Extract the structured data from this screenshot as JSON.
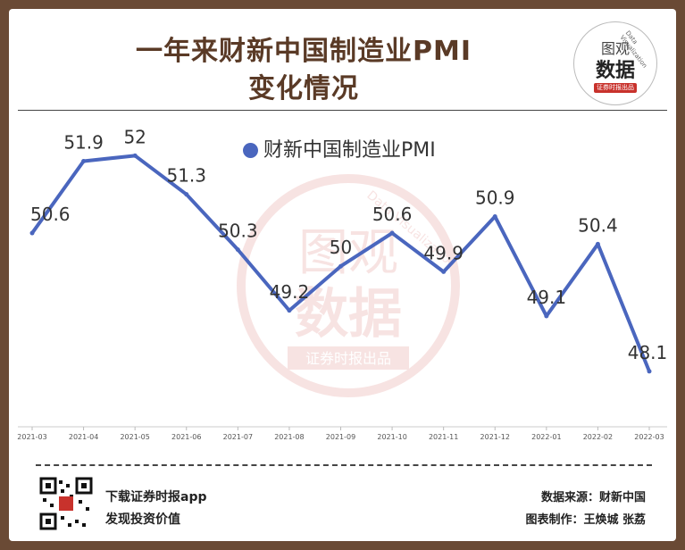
{
  "header": {
    "title_line1": "一年来财新中国制造业PMI",
    "title_line2": "变化情况"
  },
  "badge": {
    "line1": "图观",
    "line2": "数据",
    "tagline": "证券时报出品",
    "arc_text": "Data Visualization"
  },
  "watermark": {
    "line1": "图观",
    "line2": "数据",
    "tagline": "证券时报出品",
    "arc_text": "Data Visualization"
  },
  "chart_data": {
    "type": "line",
    "title": "一年来财新中国制造业PMI变化情况",
    "categories": [
      "2021-03",
      "2021-04",
      "2021-05",
      "2021-06",
      "2021-07",
      "2021-08",
      "2021-09",
      "2021-10",
      "2021-11",
      "2021-12",
      "2022-01",
      "2022-02",
      "2022-03"
    ],
    "series": [
      {
        "name": "财新中国制造业PMI",
        "values": [
          50.6,
          51.9,
          52,
          51.3,
          50.3,
          49.2,
          50,
          50.6,
          49.9,
          50.9,
          49.1,
          50.4,
          48.1
        ]
      }
    ],
    "ylim": [
      46.5,
      53.2
    ],
    "legend": "top-center",
    "grid": false,
    "colors": {
      "line": "#4a66be"
    }
  },
  "footer": {
    "download_line1": "下载证券时报app",
    "download_line2": "发现投资价值",
    "source": "数据来源：财新中国",
    "credit": "图表制作：王焕城 张荔"
  }
}
